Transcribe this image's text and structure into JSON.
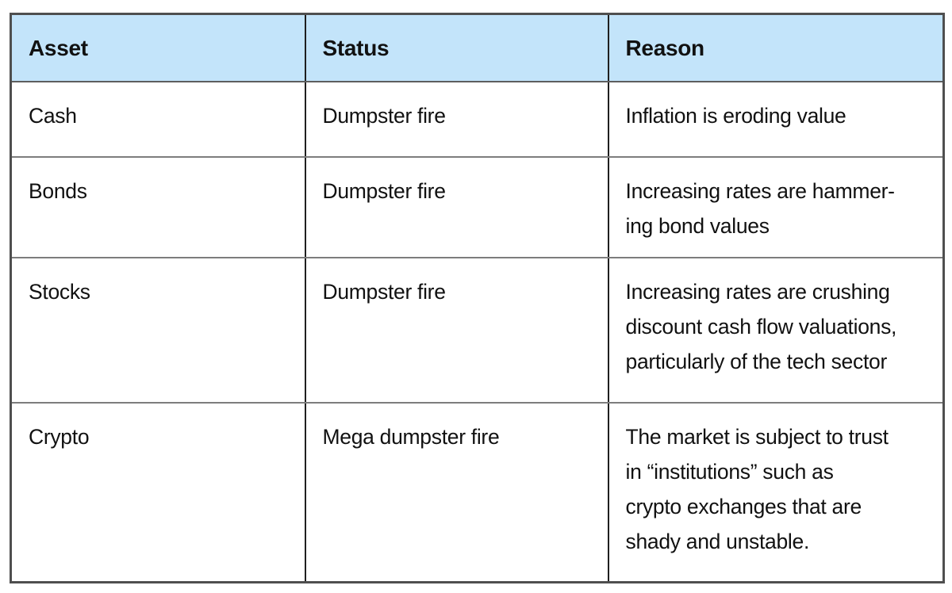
{
  "table": {
    "columns": [
      {
        "label": "Asset"
      },
      {
        "label": "Status"
      },
      {
        "label": "Reason"
      }
    ],
    "rows": [
      {
        "asset": "Cash",
        "status": "Dumpster fire",
        "reason": "Inflation is eroding value"
      },
      {
        "asset": "Bonds",
        "status": "Dumpster fire",
        "reason": "Increasing rates are hammer-\ning bond values"
      },
      {
        "asset": "Stocks",
        "status": "Dumpster fire",
        "reason": "Increasing rates are crushing\ndiscount cash flow valuations,\nparticularly of the tech sector"
      },
      {
        "asset": "Crypto",
        "status": "Mega dumpster fire",
        "reason": "The market is subject to trust\nin “institutions” such as\ncrypto exchanges that are\nshady and unstable."
      }
    ],
    "colors": {
      "header_bg": "#c3e4fa",
      "outer_border": "#4f4f4f",
      "column_divider": "#1f1f1f",
      "row_line": "#7d7d7d",
      "text": "#111111"
    }
  }
}
